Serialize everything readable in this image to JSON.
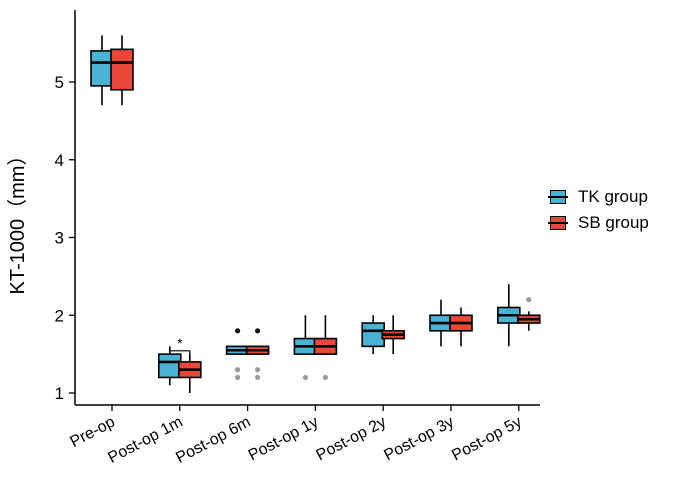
{
  "chart_data": {
    "type": "boxplot",
    "title": "",
    "xlabel": "",
    "ylabel": "KT-1000（mm）",
    "ylim": [
      0.85,
      5.9
    ],
    "yticks": [
      1,
      2,
      3,
      4,
      5
    ],
    "categories": [
      "Pre-op",
      "Post-op 1m",
      "Post-op 6m",
      "Post-op 1y",
      "Post-op 2y",
      "Post-op 3y",
      "Post-op 5y"
    ],
    "legend_position": "right",
    "series": [
      {
        "name": "TK group",
        "color": "#4ab3d3",
        "boxes": [
          {
            "whisker_low": 4.7,
            "q1": 4.95,
            "median": 5.25,
            "q3": 5.4,
            "whisker_high": 5.6,
            "outliers": []
          },
          {
            "whisker_low": 1.1,
            "q1": 1.2,
            "median": 1.4,
            "q3": 1.5,
            "whisker_high": 1.6,
            "outliers": []
          },
          {
            "whisker_low": 1.5,
            "q1": 1.5,
            "median": 1.55,
            "q3": 1.6,
            "whisker_high": 1.6,
            "outliers": [
              1.8,
              1.2,
              1.3
            ]
          },
          {
            "whisker_low": 1.5,
            "q1": 1.5,
            "median": 1.6,
            "q3": 1.7,
            "whisker_high": 2.0,
            "outliers": [
              1.2
            ]
          },
          {
            "whisker_low": 1.5,
            "q1": 1.6,
            "median": 1.8,
            "q3": 1.9,
            "whisker_high": 2.0,
            "outliers": []
          },
          {
            "whisker_low": 1.6,
            "q1": 1.8,
            "median": 1.9,
            "q3": 2.0,
            "whisker_high": 2.2,
            "outliers": []
          },
          {
            "whisker_low": 1.6,
            "q1": 1.9,
            "median": 2.0,
            "q3": 2.1,
            "whisker_high": 2.4,
            "outliers": []
          }
        ]
      },
      {
        "name": "SB group",
        "color": "#e8473a",
        "boxes": [
          {
            "whisker_low": 4.7,
            "q1": 4.9,
            "median": 5.25,
            "q3": 5.42,
            "whisker_high": 5.6,
            "outliers": []
          },
          {
            "whisker_low": 1.0,
            "q1": 1.2,
            "median": 1.3,
            "q3": 1.4,
            "whisker_high": 1.5,
            "outliers": []
          },
          {
            "whisker_low": 1.5,
            "q1": 1.5,
            "median": 1.55,
            "q3": 1.6,
            "whisker_high": 1.6,
            "outliers": [
              1.8,
              1.2,
              1.3
            ]
          },
          {
            "whisker_low": 1.5,
            "q1": 1.5,
            "median": 1.6,
            "q3": 1.7,
            "whisker_high": 2.0,
            "outliers": [
              1.2
            ]
          },
          {
            "whisker_low": 1.5,
            "q1": 1.7,
            "median": 1.75,
            "q3": 1.8,
            "whisker_high": 2.0,
            "outliers": []
          },
          {
            "whisker_low": 1.6,
            "q1": 1.8,
            "median": 1.9,
            "q3": 2.0,
            "whisker_high": 2.1,
            "outliers": []
          },
          {
            "whisker_low": 1.8,
            "q1": 1.9,
            "median": 1.95,
            "q3": 2.0,
            "whisker_high": 2.05,
            "outliers": [
              2.2
            ]
          }
        ]
      }
    ],
    "annotations": [
      {
        "text": "*",
        "category": "Post-op 1m",
        "y": 1.62,
        "bracket_between": [
          "TK group",
          "SB group"
        ]
      }
    ]
  }
}
